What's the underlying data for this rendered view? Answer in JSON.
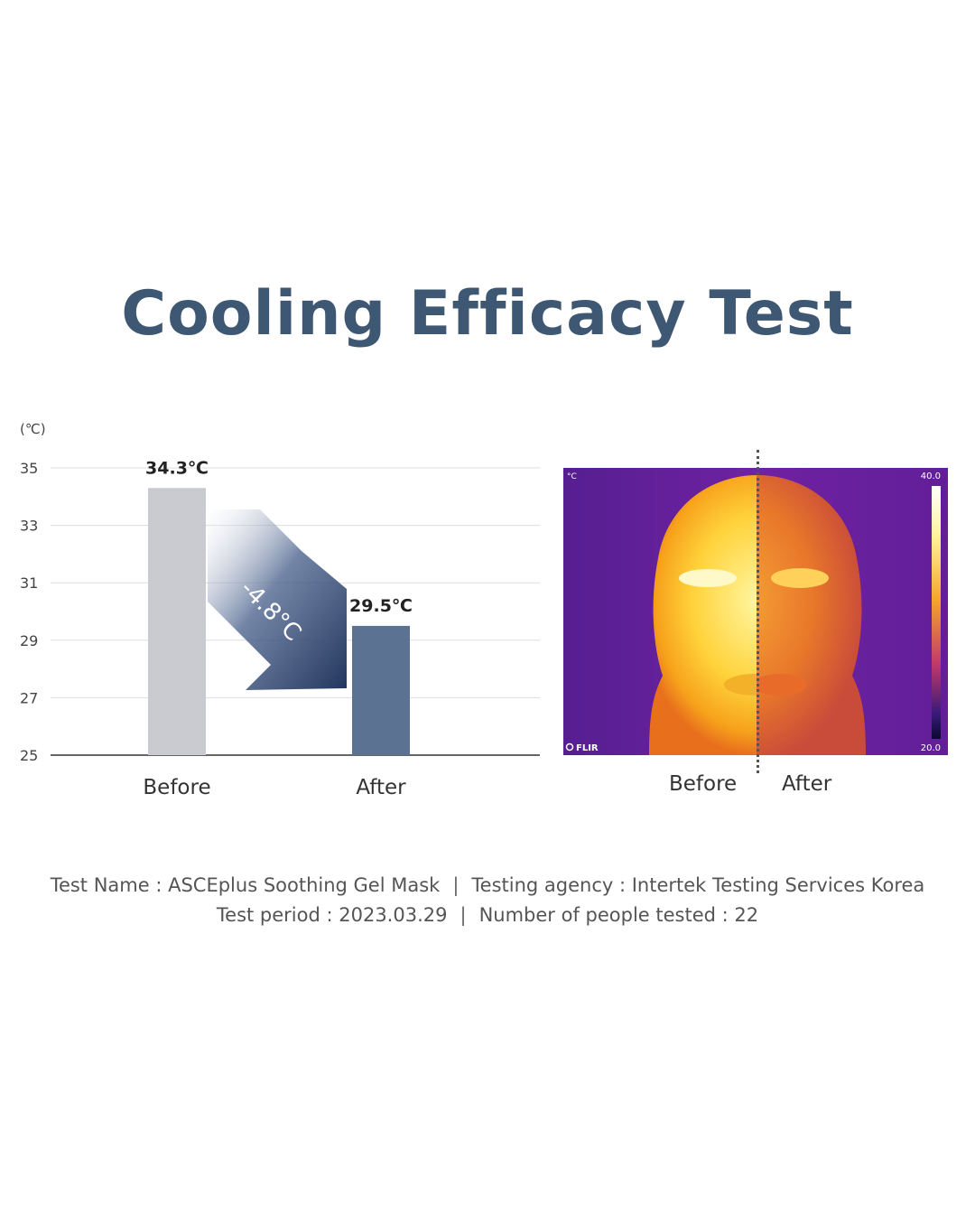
{
  "title": "Cooling Efficacy Test",
  "chart_data": {
    "type": "bar",
    "categories": [
      "Before",
      "After"
    ],
    "values": [
      34.3,
      29.5
    ],
    "value_labels": [
      "34.3℃",
      "29.5℃"
    ],
    "unit_label": "(℃)",
    "yticks": [
      25,
      27,
      29,
      31,
      33,
      35
    ],
    "ylim": [
      25,
      35
    ],
    "grid": true,
    "annotation": "-4.8°C",
    "colors": {
      "before": "#c9cbd0",
      "after": "#5b7292",
      "arrow": "#2c3e66",
      "grid": "#dddddd",
      "axis": "#666666"
    }
  },
  "thermal": {
    "labels": [
      "Before",
      "After"
    ],
    "scale_max": "40.0",
    "scale_min": "20.0",
    "unit": "°C",
    "brand": "FLIR"
  },
  "footer": {
    "line1": [
      "Test Name : ASCEplus Soothing Gel Mask",
      "Testing agency : Intertek Testing Services Korea"
    ],
    "line2": [
      "Test period : 2023.03.29",
      "Number of people tested : 22"
    ],
    "separator": "|"
  }
}
